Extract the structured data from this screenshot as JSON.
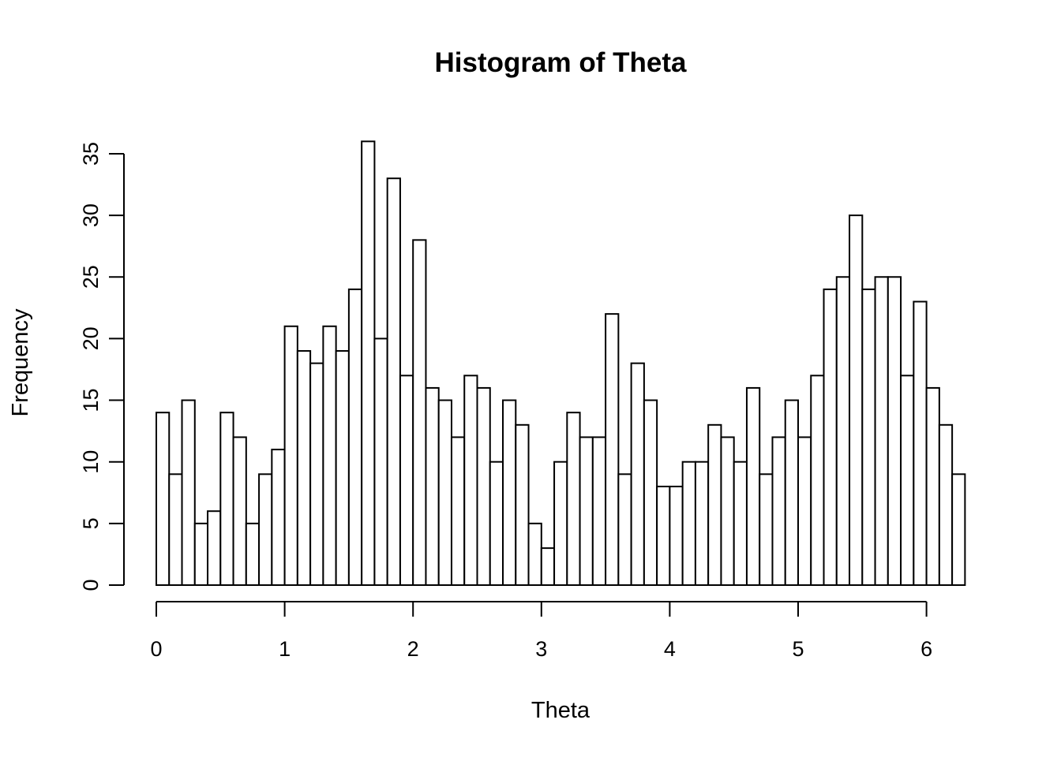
{
  "chart_data": {
    "type": "bar",
    "title": "Histogram of Theta",
    "xlabel": "Theta",
    "ylabel": "Frequency",
    "bin_width": 0.1,
    "bin_start": 0,
    "x_ticks": [
      "0",
      "1",
      "2",
      "3",
      "4",
      "5",
      "6"
    ],
    "y_ticks": [
      "0",
      "5",
      "10",
      "15",
      "20",
      "25",
      "30",
      "35"
    ],
    "xlim": [
      0,
      6
    ],
    "ylim": [
      0,
      35
    ],
    "values": [
      14,
      9,
      15,
      5,
      6,
      14,
      12,
      5,
      9,
      11,
      21,
      19,
      18,
      21,
      19,
      24,
      36,
      20,
      33,
      17,
      28,
      16,
      15,
      12,
      17,
      16,
      10,
      15,
      13,
      5,
      3,
      10,
      14,
      12,
      12,
      22,
      9,
      18,
      15,
      8,
      8,
      10,
      10,
      13,
      12,
      10,
      16,
      9,
      12,
      15,
      12,
      17,
      24,
      25,
      30,
      24,
      25,
      25,
      17,
      23,
      16,
      13,
      9
    ],
    "colors": {
      "bar_fill": "#ffffff",
      "bar_stroke": "#000000"
    }
  }
}
